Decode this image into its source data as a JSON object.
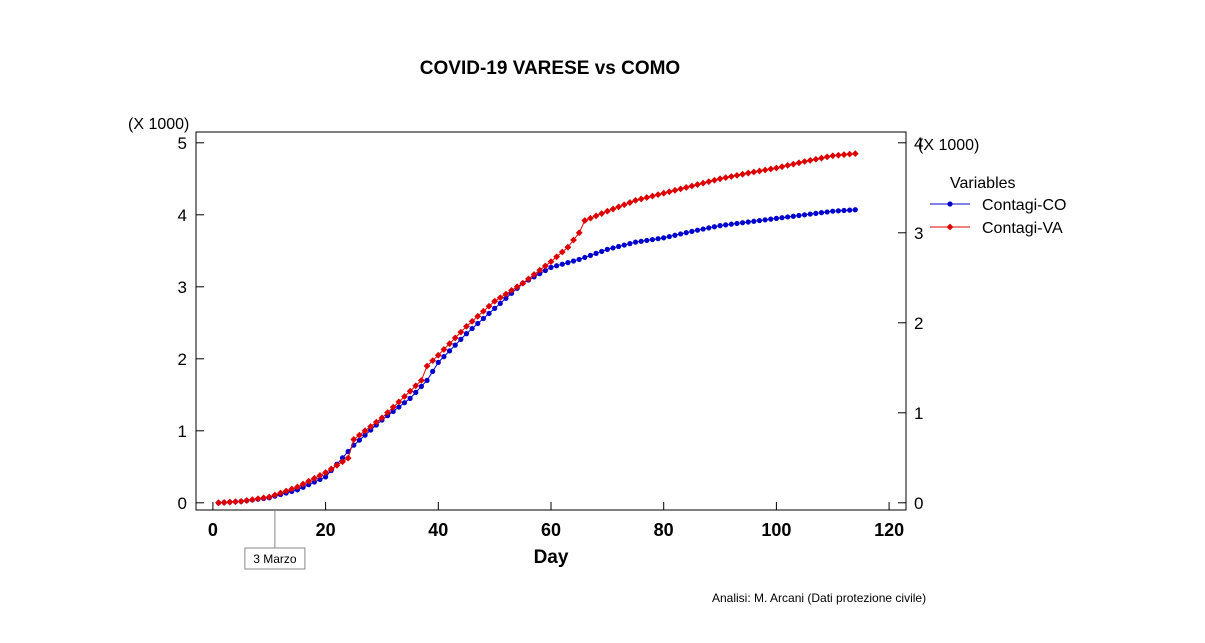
{
  "chart_data": {
    "type": "line",
    "title": "COVID-19 VARESE vs COMO",
    "xlabel": "Day",
    "ylabel": "",
    "y_scale_label": "(X 1000)",
    "y2_scale_label": "(X 1000)",
    "xlim": [
      -3,
      123
    ],
    "ylim": [
      -0.1,
      5.15
    ],
    "y2lim": [
      -0.08,
      4.12
    ],
    "x_ticks": [
      0,
      20,
      40,
      60,
      80,
      100,
      120
    ],
    "y_ticks": [
      0,
      1,
      2,
      3,
      4,
      5
    ],
    "y2_ticks": [
      0,
      1,
      2,
      3,
      4
    ],
    "grid": false,
    "legend": {
      "title": "Variables",
      "placement": "right"
    },
    "annotation": {
      "text": "3 Marzo",
      "x": 11
    },
    "credit": "Analisi: M. Arcani (Dati protezione civile)",
    "series": [
      {
        "name": "Contagi-CO",
        "color": "#0000cc",
        "marker": "circle",
        "axis": "left",
        "anchors": [
          [
            1,
            0.0
          ],
          [
            5,
            0.02
          ],
          [
            10,
            0.07
          ],
          [
            15,
            0.18
          ],
          [
            20,
            0.36
          ],
          [
            25,
            0.8
          ],
          [
            30,
            1.15
          ],
          [
            35,
            1.45
          ],
          [
            38,
            1.7
          ],
          [
            40,
            1.95
          ],
          [
            45,
            2.35
          ],
          [
            50,
            2.7
          ],
          [
            55,
            3.05
          ],
          [
            60,
            3.27
          ],
          [
            65,
            3.38
          ],
          [
            70,
            3.52
          ],
          [
            75,
            3.62
          ],
          [
            80,
            3.68
          ],
          [
            85,
            3.77
          ],
          [
            90,
            3.85
          ],
          [
            95,
            3.9
          ],
          [
            100,
            3.95
          ],
          [
            105,
            4.0
          ],
          [
            110,
            4.05
          ],
          [
            114,
            4.07
          ]
        ]
      },
      {
        "name": "Contagi-VA",
        "color": "#dd0000",
        "marker": "diamond",
        "axis": "left",
        "anchors": [
          [
            1,
            0.0
          ],
          [
            5,
            0.02
          ],
          [
            10,
            0.08
          ],
          [
            15,
            0.22
          ],
          [
            20,
            0.42
          ],
          [
            24,
            0.62
          ],
          [
            25,
            0.88
          ],
          [
            30,
            1.18
          ],
          [
            35,
            1.55
          ],
          [
            37,
            1.7
          ],
          [
            38,
            1.9
          ],
          [
            40,
            2.05
          ],
          [
            45,
            2.45
          ],
          [
            50,
            2.8
          ],
          [
            55,
            3.05
          ],
          [
            60,
            3.35
          ],
          [
            63,
            3.55
          ],
          [
            65,
            3.75
          ],
          [
            66,
            3.92
          ],
          [
            70,
            4.05
          ],
          [
            75,
            4.2
          ],
          [
            80,
            4.3
          ],
          [
            85,
            4.4
          ],
          [
            90,
            4.5
          ],
          [
            95,
            4.58
          ],
          [
            100,
            4.65
          ],
          [
            105,
            4.74
          ],
          [
            110,
            4.82
          ],
          [
            114,
            4.85
          ]
        ]
      }
    ]
  }
}
